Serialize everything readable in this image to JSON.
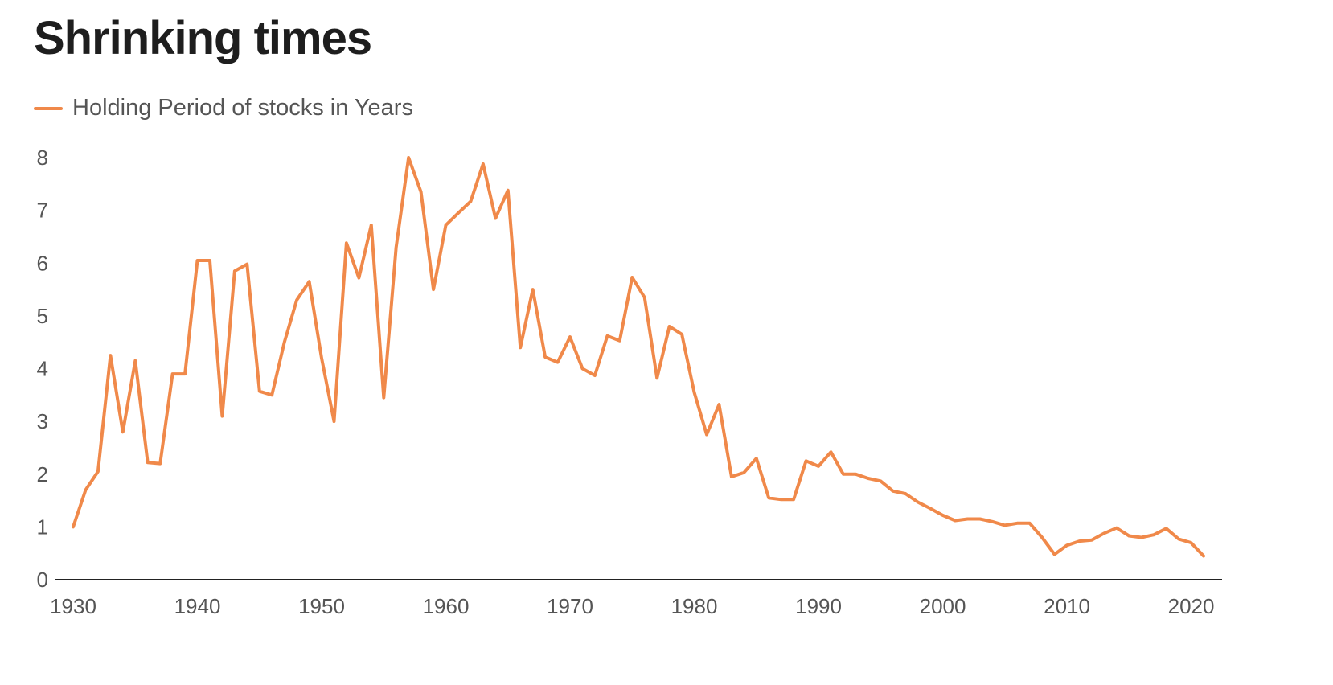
{
  "chart_data": {
    "type": "line",
    "title": "Shrinking times",
    "xlabel": "",
    "ylabel": "",
    "xlim": [
      1930,
      2021
    ],
    "ylim": [
      0,
      8
    ],
    "grid": false,
    "legend_position": "top-left",
    "x_ticks": [
      "1930",
      "1940",
      "1950",
      "1960",
      "1970",
      "1980",
      "1990",
      "2000",
      "2010",
      "2020"
    ],
    "y_ticks": [
      "0",
      "1",
      "2",
      "3",
      "4",
      "5",
      "6",
      "7",
      "8"
    ],
    "series": [
      {
        "name": "Holding Period of stocks in Years",
        "color": "#f0894a",
        "x": [
          1930,
          1931,
          1932,
          1933,
          1934,
          1935,
          1936,
          1937,
          1938,
          1939,
          1940,
          1941,
          1942,
          1943,
          1944,
          1945,
          1946,
          1947,
          1948,
          1949,
          1950,
          1951,
          1952,
          1953,
          1954,
          1955,
          1956,
          1957,
          1958,
          1959,
          1960,
          1961,
          1962,
          1963,
          1964,
          1965,
          1966,
          1967,
          1968,
          1969,
          1970,
          1971,
          1972,
          1973,
          1974,
          1975,
          1976,
          1977,
          1978,
          1979,
          1980,
          1981,
          1982,
          1983,
          1984,
          1985,
          1986,
          1987,
          1988,
          1989,
          1990,
          1991,
          1992,
          1993,
          1994,
          1995,
          1996,
          1997,
          1998,
          1999,
          2000,
          2001,
          2002,
          2003,
          2004,
          2005,
          2006,
          2007,
          2008,
          2009,
          2010,
          2011,
          2012,
          2013,
          2014,
          2015,
          2016,
          2017,
          2018,
          2019,
          2020,
          2021
        ],
        "values": [
          1.0,
          1.7,
          2.05,
          4.25,
          2.8,
          4.15,
          2.22,
          2.2,
          3.9,
          3.9,
          6.05,
          6.05,
          3.1,
          5.85,
          5.98,
          3.57,
          3.5,
          4.5,
          5.3,
          5.65,
          4.2,
          3.0,
          6.38,
          5.72,
          6.72,
          3.45,
          6.3,
          8.0,
          7.35,
          5.5,
          6.72,
          6.95,
          7.17,
          7.88,
          6.85,
          7.38,
          4.4,
          5.5,
          4.22,
          4.12,
          4.6,
          4.0,
          3.87,
          4.62,
          4.53,
          5.73,
          5.35,
          3.82,
          4.8,
          4.65,
          3.55,
          2.75,
          3.32,
          1.95,
          2.03,
          2.3,
          1.55,
          1.52,
          1.52,
          2.25,
          2.15,
          2.42,
          2.0,
          2.0,
          1.92,
          1.87,
          1.68,
          1.63,
          1.47,
          1.35,
          1.22,
          1.12,
          1.15,
          1.15,
          1.1,
          1.03,
          1.07,
          1.07,
          0.8,
          0.48,
          0.65,
          0.73,
          0.75,
          0.88,
          0.98,
          0.83,
          0.8,
          0.85,
          0.97,
          0.77,
          0.7,
          0.45
        ]
      }
    ]
  }
}
